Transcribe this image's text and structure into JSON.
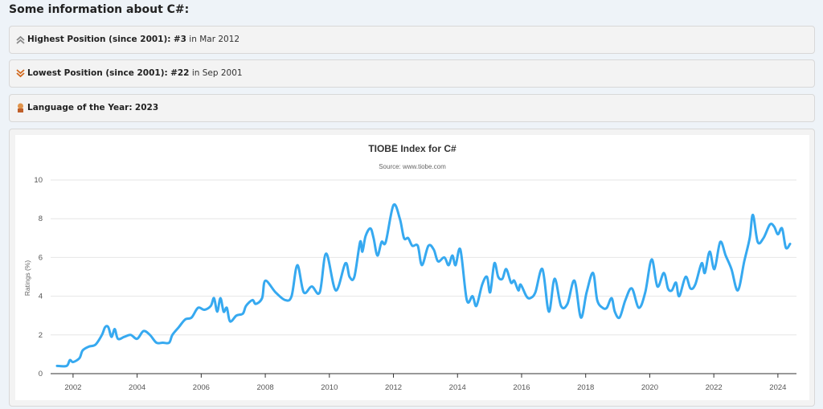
{
  "heading": "Some information about C#:",
  "info": [
    {
      "label": "Highest Position (since 2001):",
      "value": "#3",
      "detail": "in Mar 2012"
    },
    {
      "label": "Lowest Position (since 2001):",
      "value": "#22",
      "detail": "in Sep 2001"
    },
    {
      "label": "Language of the Year:",
      "value": "2023"
    }
  ],
  "chart_data": {
    "type": "line",
    "title": "TIOBE Index for C#",
    "subtitle": "Source: www.tiobe.com",
    "ylabel": "Ratings (%)",
    "color": "#36a9f0",
    "grid": true,
    "xlim": [
      2001.3,
      2024.58
    ],
    "xticks": [
      2002,
      2004,
      2006,
      2008,
      2010,
      2012,
      2014,
      2016,
      2018,
      2020,
      2022,
      2024
    ],
    "ylim": [
      0,
      10
    ],
    "yticks": [
      0,
      2,
      4,
      6,
      8,
      10
    ],
    "x": [
      2001.5,
      2001.8,
      2001.9,
      2002.0,
      2002.2,
      2002.3,
      2002.5,
      2002.7,
      2002.9,
      2003.0,
      2003.1,
      2003.2,
      2003.3,
      2003.4,
      2003.6,
      2003.8,
      2004.0,
      2004.2,
      2004.4,
      2004.6,
      2004.8,
      2005.0,
      2005.1,
      2005.3,
      2005.5,
      2005.7,
      2005.9,
      2006.1,
      2006.3,
      2006.4,
      2006.5,
      2006.6,
      2006.7,
      2006.8,
      2006.9,
      2007.1,
      2007.3,
      2007.4,
      2007.6,
      2007.7,
      2007.9,
      2008.0,
      2008.32,
      2008.62,
      2008.82,
      2009.0,
      2009.2,
      2009.45,
      2009.7,
      2009.9,
      2010.2,
      2010.5,
      2010.63,
      2010.78,
      2010.96,
      2011.03,
      2011.13,
      2011.28,
      2011.38,
      2011.5,
      2011.63,
      2011.76,
      2012.0,
      2012.2,
      2012.33,
      2012.46,
      2012.59,
      2012.76,
      2012.89,
      2013.09,
      2013.26,
      2013.39,
      2013.59,
      2013.72,
      2013.84,
      2013.94,
      2014.09,
      2014.29,
      2014.47,
      2014.59,
      2014.77,
      2014.92,
      2015.02,
      2015.15,
      2015.27,
      2015.4,
      2015.52,
      2015.67,
      2015.77,
      2015.9,
      2015.97,
      2016.15,
      2016.27,
      2016.43,
      2016.65,
      2016.85,
      2017.03,
      2017.23,
      2017.43,
      2017.65,
      2017.85,
      2018.03,
      2018.23,
      2018.36,
      2018.53,
      2018.66,
      2018.81,
      2018.91,
      2019.06,
      2019.24,
      2019.44,
      2019.66,
      2019.86,
      2020.06,
      2020.24,
      2020.44,
      2020.57,
      2020.69,
      2020.82,
      2020.92,
      2021.12,
      2021.27,
      2021.42,
      2021.62,
      2021.72,
      2021.87,
      2022.02,
      2022.2,
      2022.37,
      2022.55,
      2022.75,
      2022.95,
      2023.12,
      2023.22,
      2023.37,
      2023.55,
      2023.75,
      2023.88,
      2024.0,
      2024.13,
      2024.25,
      2024.38
    ],
    "values": [
      0.4,
      0.4,
      0.7,
      0.6,
      0.8,
      1.2,
      1.4,
      1.5,
      2.0,
      2.4,
      2.4,
      1.9,
      2.3,
      1.8,
      1.9,
      2.0,
      1.8,
      2.2,
      2.0,
      1.6,
      1.6,
      1.6,
      2.0,
      2.4,
      2.8,
      2.9,
      3.4,
      3.3,
      3.5,
      3.9,
      3.2,
      3.9,
      3.2,
      3.4,
      2.7,
      3.0,
      3.1,
      3.5,
      3.8,
      3.6,
      3.9,
      4.8,
      4.2,
      3.8,
      4.0,
      5.6,
      4.2,
      4.5,
      4.2,
      6.2,
      4.3,
      5.7,
      5.0,
      5.0,
      6.8,
      6.3,
      7.1,
      7.5,
      7.0,
      6.1,
      6.8,
      6.8,
      8.7,
      8.0,
      7.0,
      7.0,
      6.6,
      6.6,
      5.6,
      6.6,
      6.4,
      5.8,
      6.0,
      5.6,
      6.1,
      5.6,
      6.4,
      3.8,
      4.0,
      3.5,
      4.6,
      5.0,
      4.2,
      5.7,
      5.0,
      4.9,
      5.4,
      4.7,
      4.8,
      4.3,
      4.6,
      4.0,
      3.9,
      4.2,
      5.4,
      3.2,
      4.9,
      3.5,
      3.6,
      4.8,
      2.9,
      4.2,
      5.2,
      3.8,
      3.4,
      3.4,
      3.9,
      3.2,
      2.9,
      3.8,
      4.4,
      3.4,
      4.2,
      5.9,
      4.5,
      5.2,
      4.4,
      4.3,
      4.7,
      4.0,
      5.0,
      4.4,
      4.6,
      5.7,
      5.2,
      6.3,
      5.4,
      6.8,
      6.1,
      5.4,
      4.3,
      5.8,
      7.0,
      8.2,
      6.8,
      7.0,
      7.7,
      7.6,
      7.2,
      7.5,
      6.5,
      6.7
    ]
  }
}
